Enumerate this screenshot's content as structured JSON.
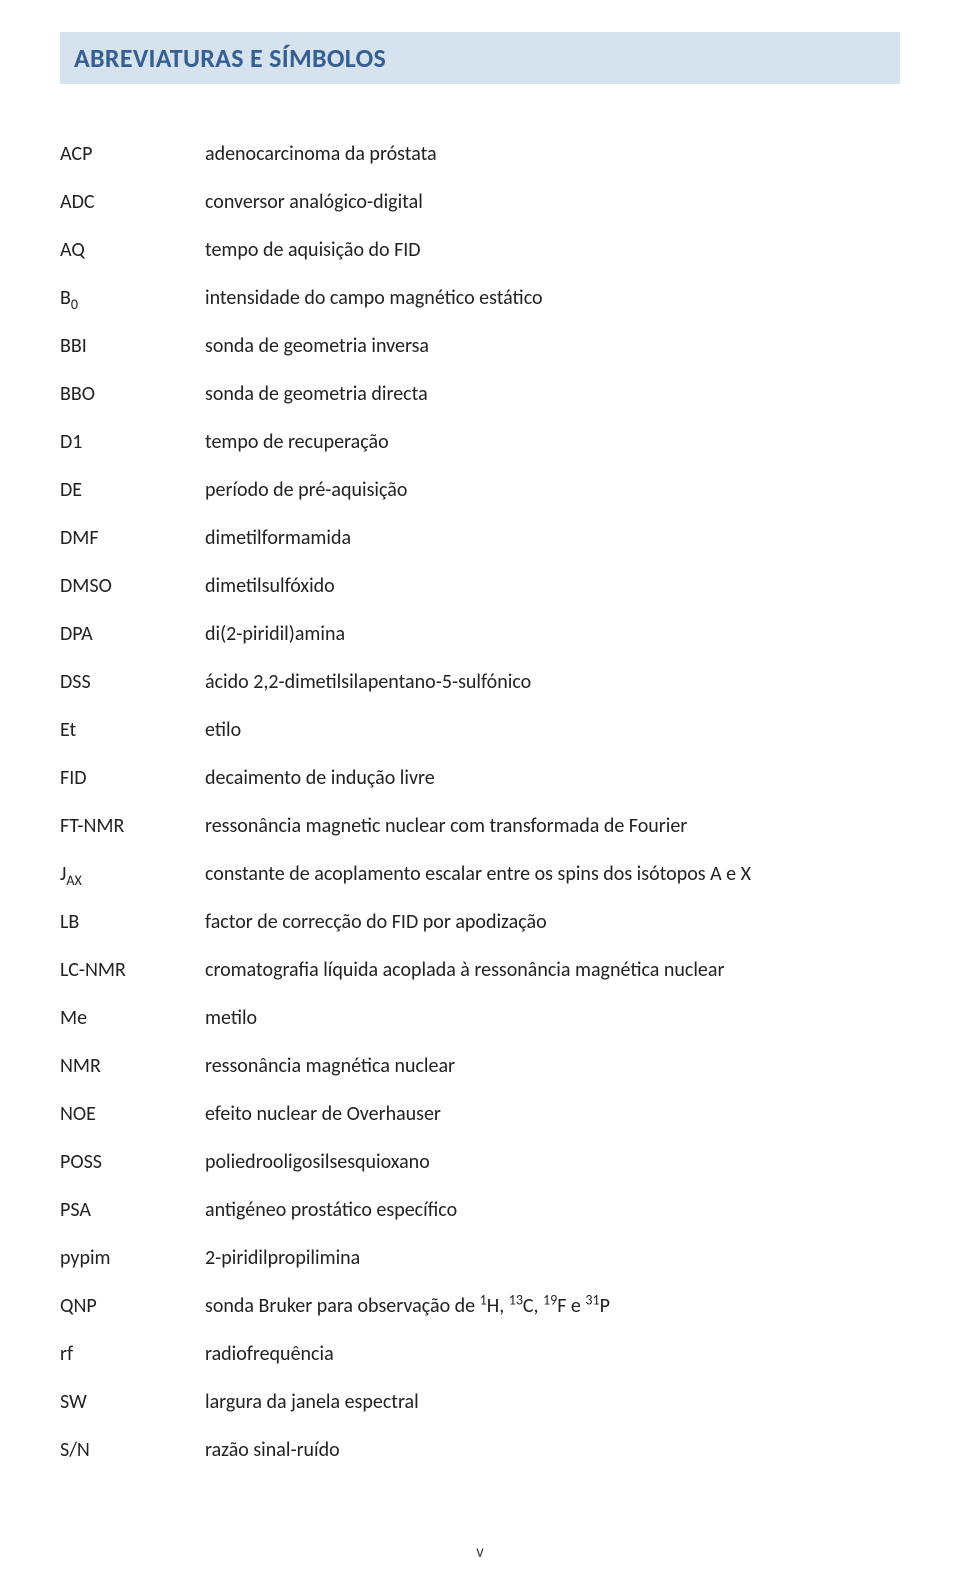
{
  "header": {
    "title": "ABREVIATURAS E SÍMBOLOS",
    "background_color": "#d6e3ef",
    "title_color": "#365f91",
    "title_fontsize": 26,
    "title_weight": 700
  },
  "body_text": {
    "fontsize": 20,
    "color": "#222222",
    "row_gap": 20,
    "term_col_width": 145
  },
  "page_number": "v",
  "entries": [
    {
      "term": "ACP",
      "term_fmt": "ACP",
      "def": "adenocarcinoma da próstata",
      "def_fmt": "adenocarcinoma da próstata"
    },
    {
      "term": "ADC",
      "term_fmt": "ADC",
      "def": "conversor analógico-digital",
      "def_fmt": "conversor analógico-digital"
    },
    {
      "term": "AQ",
      "term_fmt": "AQ",
      "def": "tempo de aquisição do FID",
      "def_fmt": "tempo de aquisição do FID"
    },
    {
      "term": "B0",
      "term_fmt": "B<sub>0</sub>",
      "def": "intensidade do campo magnético estático",
      "def_fmt": "intensidade do campo magnético estático"
    },
    {
      "term": "BBI",
      "term_fmt": "BBI",
      "def": "sonda de geometria inversa",
      "def_fmt": "sonda de geometria inversa"
    },
    {
      "term": "BBO",
      "term_fmt": "BBO",
      "def": "sonda de geometria directa",
      "def_fmt": "sonda de geometria directa"
    },
    {
      "term": "D1",
      "term_fmt": "D1",
      "def": "tempo de recuperação",
      "def_fmt": "tempo de recuperação"
    },
    {
      "term": "DE",
      "term_fmt": "DE",
      "def": "período de pré-aquisição",
      "def_fmt": "período de pré-aquisição"
    },
    {
      "term": "DMF",
      "term_fmt": "DMF",
      "def": "dimetilformamida",
      "def_fmt": "dimetilformamida"
    },
    {
      "term": "DMSO",
      "term_fmt": "DMSO",
      "def": "dimetilsulfóxido",
      "def_fmt": "dimetilsulfóxido"
    },
    {
      "term": "DPA",
      "term_fmt": "DPA",
      "def": "di(2-piridil)amina",
      "def_fmt": "di(2-piridil)amina"
    },
    {
      "term": "DSS",
      "term_fmt": "DSS",
      "def": "ácido 2,2-dimetilsilapentano-5-sulfónico",
      "def_fmt": "ácido 2,2-dimetilsilapentano-5-sulfónico"
    },
    {
      "term": "Et",
      "term_fmt": "Et",
      "def": "etilo",
      "def_fmt": "etilo"
    },
    {
      "term": "FID",
      "term_fmt": "FID",
      "def": "decaimento de indução livre",
      "def_fmt": "decaimento de indução livre"
    },
    {
      "term": "FT-NMR",
      "term_fmt": "FT-NMR",
      "def": "ressonância magnetic nuclear com transformada de Fourier",
      "def_fmt": "ressonância magnetic nuclear com transformada de Fourier"
    },
    {
      "term": "JAX",
      "term_fmt": "J<sub>AX</sub>",
      "def": "constante de acoplamento escalar entre os spins dos isótopos A e X",
      "def_fmt": "constante de acoplamento escalar entre os spins dos isótopos A e X"
    },
    {
      "term": "LB",
      "term_fmt": "LB",
      "def": "factor de correcção do FID por apodização",
      "def_fmt": "factor de correcção do FID por apodização"
    },
    {
      "term": "LC-NMR",
      "term_fmt": "LC-NMR",
      "def": "cromatografia líquida acoplada à ressonância magnética nuclear",
      "def_fmt": "cromatografia líquida acoplada à ressonância magnética nuclear"
    },
    {
      "term": "Me",
      "term_fmt": "Me",
      "def": "metilo",
      "def_fmt": "metilo"
    },
    {
      "term": "NMR",
      "term_fmt": "NMR",
      "def": "ressonância magnética nuclear",
      "def_fmt": "ressonância magnética nuclear"
    },
    {
      "term": "NOE",
      "term_fmt": "NOE",
      "def": "efeito nuclear de Overhauser",
      "def_fmt": "efeito nuclear de Overhauser"
    },
    {
      "term": "POSS",
      "term_fmt": "POSS",
      "def": "poliedrooligosilsesquioxano",
      "def_fmt": "poliedrooligosilsesquioxano"
    },
    {
      "term": "PSA",
      "term_fmt": "PSA",
      "def": "antigéneo prostático específico",
      "def_fmt": "antigéneo prostático específico"
    },
    {
      "term": "pypim",
      "term_fmt": "pypim",
      "def": "2-piridilpropilimina",
      "def_fmt": "2-piridilpropilimina"
    },
    {
      "term": "QNP",
      "term_fmt": "QNP",
      "def": "sonda Bruker para observação de 1H, 13C, 19F e 31P",
      "def_fmt": "sonda Bruker para observação de <sup>1</sup>H, <sup>13</sup>C, <sup>19</sup>F e <sup>31</sup>P"
    },
    {
      "term": "rf",
      "term_fmt": "rf",
      "def": "radiofrequência",
      "def_fmt": "radiofrequência"
    },
    {
      "term": "SW",
      "term_fmt": "SW",
      "def": "largura da janela espectral",
      "def_fmt": "largura da janela espectral"
    },
    {
      "term": "S/N",
      "term_fmt": "S/N",
      "def": "razão sinal-ruído",
      "def_fmt": "razão sinal-ruído"
    }
  ]
}
